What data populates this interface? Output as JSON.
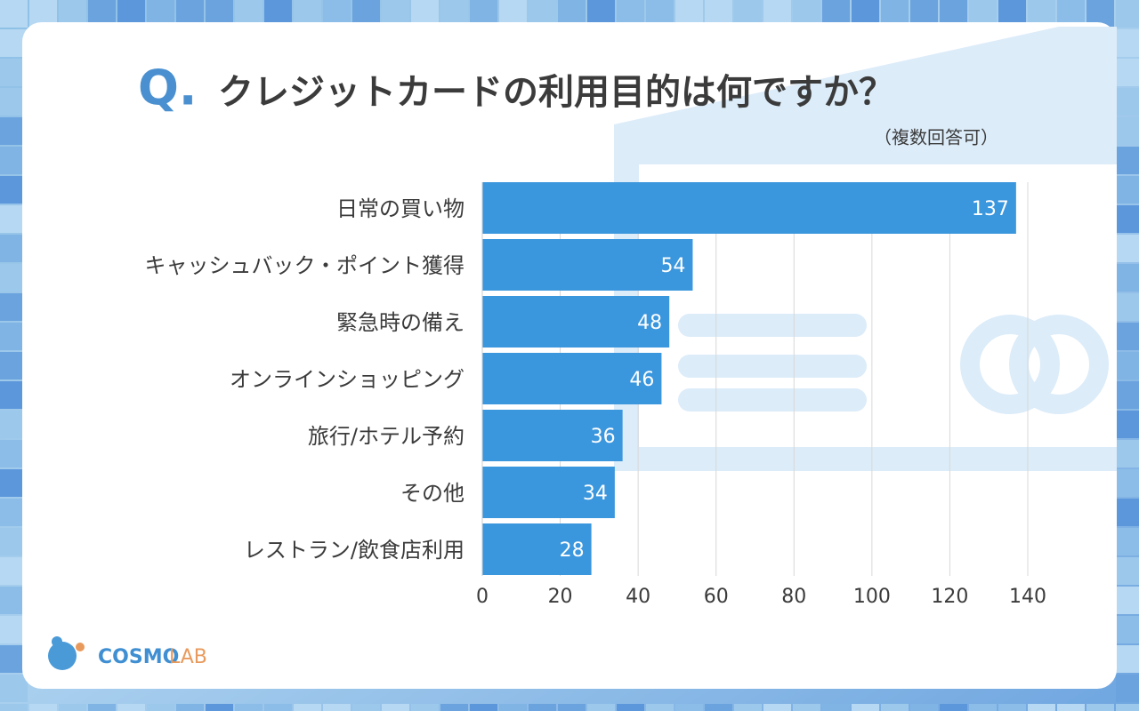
{
  "chart_data": {
    "type": "hbar",
    "title_prefix": "Q.",
    "title": "クレジットカードの利用目的は何ですか？",
    "subtitle": "（複数回答可）",
    "categories": [
      "日常の買い物",
      "キャッシュバック・ポイント獲得",
      "緊急時の備え",
      "オンラインショッピング",
      "旅行/ホテル予約",
      "その他",
      "レストラン/飲食店利用"
    ],
    "values": [
      137,
      54,
      48,
      46,
      36,
      34,
      28
    ],
    "color": "#3a96dd",
    "xlim": [
      0,
      140
    ],
    "xticks": [
      0,
      20,
      40,
      60,
      80,
      100,
      120,
      140
    ],
    "grid": true
  },
  "brand": [
    "COSMO",
    "LAB"
  ]
}
